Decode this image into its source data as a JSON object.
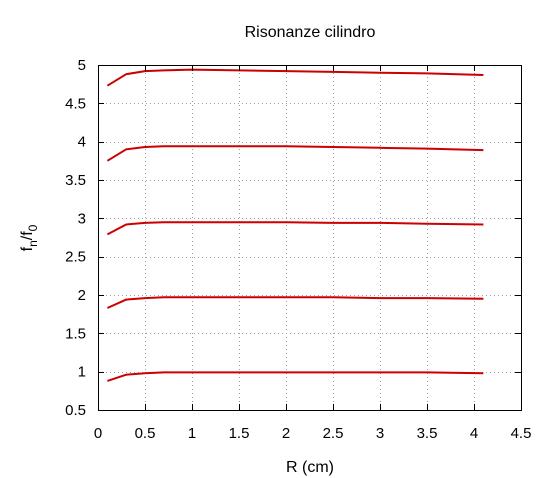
{
  "chart_data": {
    "type": "line",
    "title": "Risonanze cilindro",
    "xlabel": "R (cm)",
    "ylabel_main": "f",
    "ylabel_sub1": "n",
    "ylabel_slash": "/f",
    "ylabel_sub2": "0",
    "xlim": [
      0,
      4.5
    ],
    "ylim": [
      0.5,
      5
    ],
    "xticks": [
      "0",
      "0.5",
      "1",
      "1.5",
      "2",
      "2.5",
      "3",
      "3.5",
      "4",
      "4.5"
    ],
    "yticks": [
      "0.5",
      "1",
      "1.5",
      "2",
      "2.5",
      "3",
      "3.5",
      "4",
      "4.5",
      "5"
    ],
    "grid": true,
    "line_color": "#cc0000",
    "x": [
      0.1,
      0.3,
      0.5,
      0.7,
      1.0,
      1.5,
      2.0,
      2.5,
      3.0,
      3.5,
      4.1
    ],
    "series": [
      {
        "values": [
          0.88,
          0.96,
          0.98,
          0.99,
          0.99,
          0.99,
          0.99,
          0.99,
          0.99,
          0.99,
          0.98
        ]
      },
      {
        "values": [
          1.83,
          1.94,
          1.96,
          1.97,
          1.97,
          1.97,
          1.97,
          1.97,
          1.96,
          1.96,
          1.95
        ]
      },
      {
        "values": [
          2.79,
          2.92,
          2.94,
          2.95,
          2.95,
          2.95,
          2.95,
          2.94,
          2.94,
          2.93,
          2.92
        ]
      },
      {
        "values": [
          3.75,
          3.9,
          3.93,
          3.94,
          3.94,
          3.94,
          3.94,
          3.93,
          3.92,
          3.91,
          3.89
        ]
      },
      {
        "values": [
          4.73,
          4.88,
          4.92,
          4.93,
          4.94,
          4.93,
          4.92,
          4.91,
          4.9,
          4.89,
          4.87
        ]
      }
    ]
  }
}
